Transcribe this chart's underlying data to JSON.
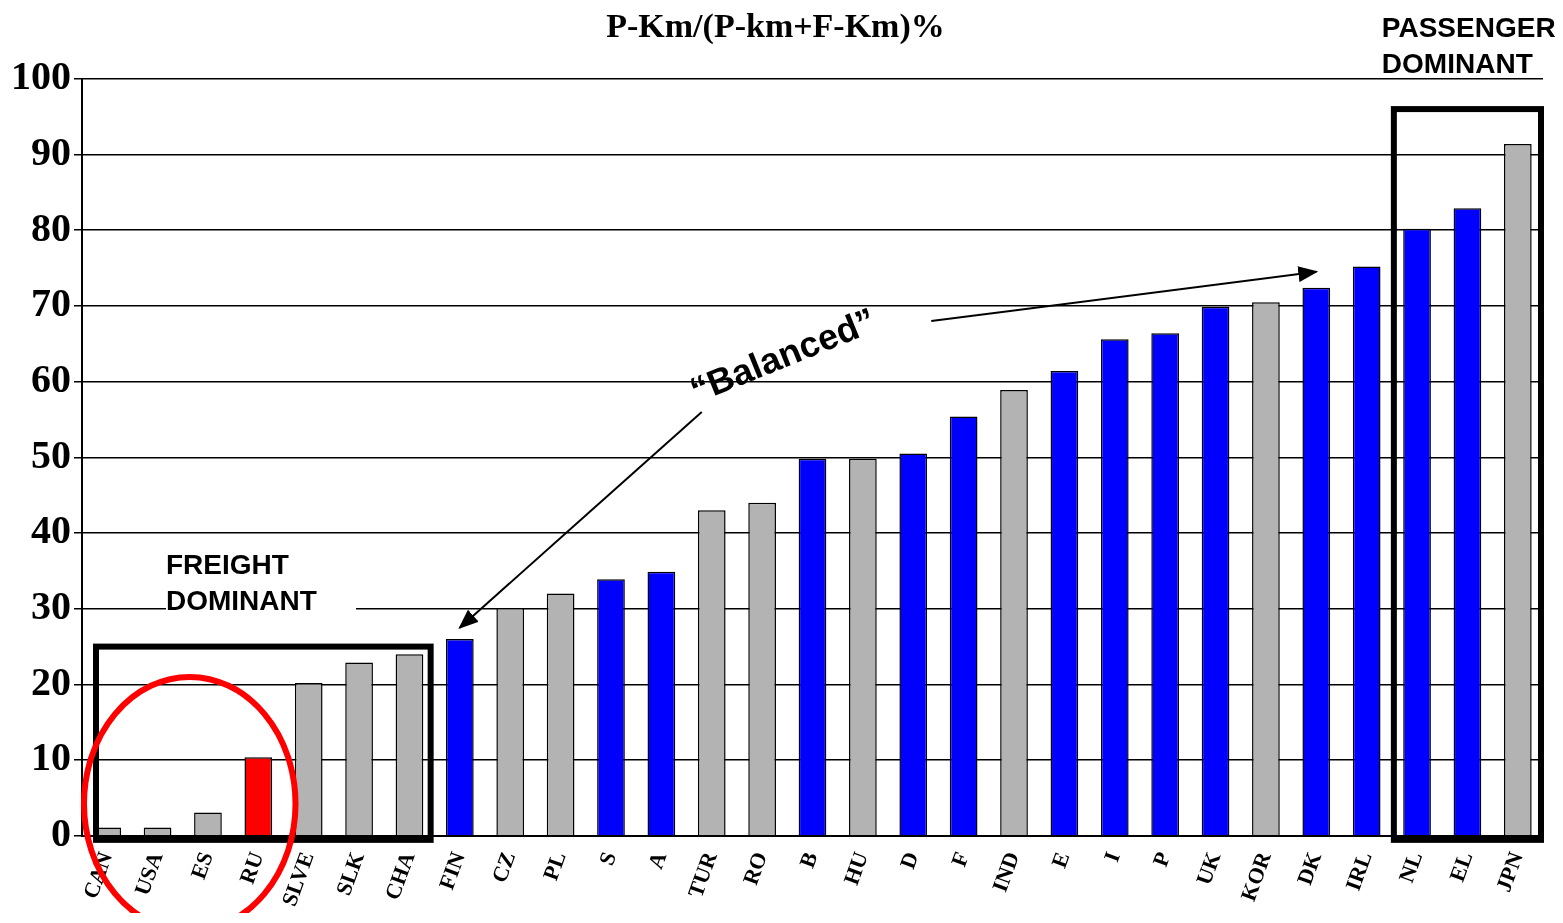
{
  "chart_data": {
    "type": "bar",
    "title": "P-Km/(P-km+F-Km)%",
    "categories": [
      "CAN",
      "USA",
      "ES",
      "RU",
      "SLVE",
      "SLK",
      "CHA",
      "FIN",
      "CZ",
      "PL",
      "S",
      "A",
      "TUR",
      "RO",
      "B",
      "HU",
      "D",
      "F",
      "IND",
      "E",
      "I",
      "P",
      "UK",
      "KOR",
      "DK",
      "IRL",
      "NL",
      "EL",
      "JPN"
    ],
    "values": [
      1.1,
      1.1,
      3.1,
      10.4,
      20.2,
      22.9,
      24,
      26,
      30.1,
      32,
      33.9,
      34.9,
      43,
      44,
      49.8,
      49.8,
      50.5,
      55.4,
      58.9,
      61.4,
      65.6,
      66.4,
      69.9,
      70.5,
      72.4,
      75.2,
      80.2,
      82.9,
      91.4
    ],
    "colors": [
      "#b3b3b3",
      "#b3b3b3",
      "#b3b3b3",
      "#ff0000",
      "#b3b3b3",
      "#b3b3b3",
      "#b3b3b3",
      "#0000ff",
      "#b3b3b3",
      "#b3b3b3",
      "#0000ff",
      "#0000ff",
      "#b3b3b3",
      "#b3b3b3",
      "#0000ff",
      "#b3b3b3",
      "#0000ff",
      "#0000ff",
      "#b3b3b3",
      "#0000ff",
      "#0000ff",
      "#0000ff",
      "#0000ff",
      "#b3b3b3",
      "#0000ff",
      "#0000ff",
      "#0000ff",
      "#0000ff",
      "#b3b3b3"
    ],
    "ylim": [
      0,
      100
    ],
    "yticks": [
      0,
      10,
      20,
      30,
      40,
      50,
      60,
      70,
      80,
      90,
      100
    ],
    "grid": "y",
    "legend": false,
    "annotations": [
      "FREIGHT DOMINANT",
      "PASSENGER DOMINANT",
      "“Balanced”"
    ]
  }
}
